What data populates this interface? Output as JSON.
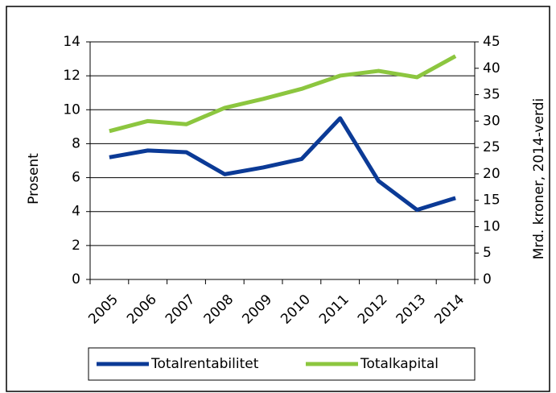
{
  "chart_data": {
    "type": "line",
    "categories": [
      "2005",
      "2006",
      "2007",
      "2008",
      "2009",
      "2010",
      "2011",
      "2012",
      "2013",
      "2014"
    ],
    "series": [
      {
        "name": "Totalrentabilitet",
        "color": "#0b3a96",
        "values": [
          7.2,
          7.6,
          7.5,
          6.2,
          6.6,
          7.1,
          9.5,
          5.8,
          4.1,
          4.8
        ]
      },
      {
        "name": "Totalkapital",
        "color": "#8cc63f",
        "axis": "y2",
        "values": [
          28.1,
          30.0,
          29.4,
          32.5,
          34.2,
          36.1,
          38.6,
          39.5,
          38.3,
          42.3
        ]
      }
    ],
    "ylabel": "Prosent",
    "y2label": "Mrd. kroner, 2014-verdi",
    "ylim": [
      0,
      14
    ],
    "yticks": [
      0,
      2,
      4,
      6,
      8,
      10,
      12,
      14
    ],
    "y2lim": [
      0,
      45
    ],
    "y2ticks": [
      0,
      5,
      10,
      15,
      20,
      25,
      30,
      35,
      40,
      45
    ],
    "grid": true,
    "legend": "bottom"
  }
}
